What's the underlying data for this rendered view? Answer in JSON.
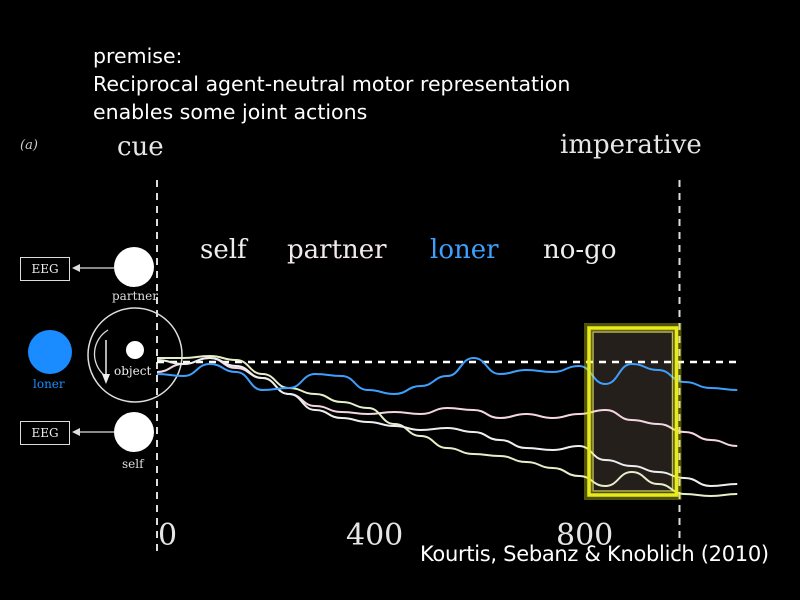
{
  "premise": {
    "line1": "premise:",
    "line2": "Reciprocal agent-neutral motor representation",
    "line3": "enables some joint actions"
  },
  "panel_label": "(a)",
  "citation": "Kourtis, Sebanz & Knoblich (2010)",
  "diagram": {
    "eeg_top": "EEG",
    "eeg_bottom": "EEG",
    "partner_label": "partner",
    "loner_label": "loner",
    "object_label": "object",
    "self_label": "self",
    "loner_color": "#1a8cff"
  },
  "chart_data": {
    "type": "line",
    "xlabel": "",
    "ylabel": "",
    "xlim": [
      0,
      1100
    ],
    "xticks": [
      "0",
      "400",
      "800"
    ],
    "event_markers": [
      {
        "label": "cue",
        "x": 0
      },
      {
        "label": "imperative",
        "x": 1000
      }
    ],
    "highlight_window": [
      800,
      1000
    ],
    "legend": [
      "self",
      "partner",
      "loner",
      "no-go"
    ],
    "colors": {
      "self": "#eeeeee",
      "partner": "#f3d6e2",
      "loner": "#3da0ff",
      "no-go": "#e6f0c8",
      "highlight": "#e8ea1a"
    },
    "baseline": 0,
    "series": [
      {
        "name": "self",
        "x": [
          0,
          50,
          100,
          150,
          200,
          250,
          300,
          350,
          400,
          450,
          500,
          550,
          600,
          650,
          700,
          750,
          800,
          850,
          900,
          950,
          1000,
          1050,
          1100
        ],
        "values": [
          0.1,
          -0.1,
          0.2,
          -0.2,
          -0.8,
          -1.6,
          -2.4,
          -2.8,
          -3.0,
          -3.2,
          -3.4,
          -3.3,
          -3.5,
          -3.9,
          -4.3,
          -4.4,
          -4.2,
          -4.9,
          -5.2,
          -5.5,
          -5.8,
          -6.2,
          -6.1
        ]
      },
      {
        "name": "partner",
        "x": [
          0,
          50,
          100,
          150,
          200,
          250,
          300,
          350,
          400,
          450,
          500,
          550,
          600,
          650,
          700,
          750,
          800,
          850,
          900,
          950,
          1000,
          1050,
          1100
        ],
        "values": [
          -0.5,
          -0.1,
          0.2,
          -0.3,
          -0.8,
          -1.6,
          -2.2,
          -2.5,
          -2.6,
          -2.5,
          -2.6,
          -2.3,
          -2.4,
          -2.8,
          -2.6,
          -2.8,
          -2.6,
          -2.4,
          -2.9,
          -3.1,
          -3.5,
          -3.9,
          -4.2
        ]
      },
      {
        "name": "loner",
        "x": [
          0,
          50,
          100,
          150,
          200,
          250,
          300,
          350,
          400,
          450,
          500,
          550,
          600,
          650,
          700,
          750,
          800,
          850,
          900,
          950,
          1000,
          1050,
          1100
        ],
        "values": [
          -0.6,
          -0.7,
          -0.1,
          -0.5,
          -1.4,
          -1.3,
          -0.6,
          -0.7,
          -1.4,
          -1.6,
          -1.2,
          -0.7,
          0.2,
          -0.6,
          -0.4,
          -0.5,
          -0.2,
          -1.1,
          -0.1,
          -0.4,
          -1.0,
          -1.3,
          -1.4
        ]
      },
      {
        "name": "no-go",
        "x": [
          0,
          50,
          100,
          150,
          200,
          250,
          300,
          350,
          400,
          450,
          500,
          550,
          600,
          650,
          700,
          750,
          800,
          850,
          900,
          950,
          1000,
          1050,
          1100
        ],
        "values": [
          0.2,
          0.2,
          0.3,
          0.1,
          -0.6,
          -1.3,
          -1.6,
          -2.0,
          -2.3,
          -3.1,
          -3.7,
          -4.3,
          -4.6,
          -4.7,
          -5.0,
          -5.3,
          -5.7,
          -6.2,
          -5.5,
          -6.1,
          -6.6,
          -6.7,
          -6.6
        ]
      }
    ]
  }
}
